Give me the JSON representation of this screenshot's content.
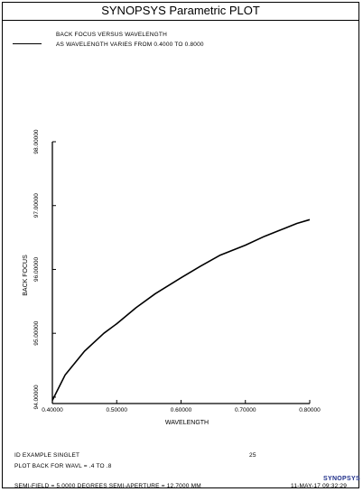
{
  "window": {
    "title": "SYNOPSYS Parametric PLOT"
  },
  "legend": {
    "line1": "BACK FOCUS VERSUS WAVELENGTH",
    "line2": "AS WAVELENGTH VARIES FROM    0.4000 TO    0.8000"
  },
  "footer": {
    "id_text": "ID EXAMPLE SINGLET",
    "page_number": "25",
    "plot_text": "PLOT BACK FOR WAVL = .4 TO .8",
    "field_text": "SEMI-FIELD =    5.0000 DEGREES   SEMI-APERTURE =    12.7000 MM",
    "timestamp": "11-MAY-17  09:32:29",
    "brand": "SYNOPSYS",
    "brand_color": "#1f2f8a"
  },
  "chart_data": {
    "type": "line",
    "xlabel": "WAVELENGTH",
    "ylabel": "BACK FOCUS",
    "xlim": [
      0.4,
      0.8
    ],
    "ylim": [
      93.9,
      98.0
    ],
    "x_ticks": [
      "0.40000",
      "0.50000",
      "0.60000",
      "0.70000",
      "0.80000"
    ],
    "x_tick_values": [
      0.4,
      0.5,
      0.6,
      0.7,
      0.8
    ],
    "y_ticks": [
      "94.00000",
      "95.00000",
      "96.00000",
      "97.00000",
      "98.00000"
    ],
    "y_tick_values": [
      94,
      95,
      96,
      97,
      98
    ],
    "grid": false,
    "series": [
      {
        "x": [
          0.4,
          0.42,
          0.45,
          0.48,
          0.5,
          0.53,
          0.56,
          0.6,
          0.63,
          0.66,
          0.7,
          0.73,
          0.76,
          0.78,
          0.8
        ],
        "y": [
          93.95,
          94.35,
          94.72,
          95.0,
          95.15,
          95.4,
          95.62,
          95.87,
          96.05,
          96.22,
          96.38,
          96.52,
          96.64,
          96.72,
          96.78
        ]
      }
    ]
  }
}
